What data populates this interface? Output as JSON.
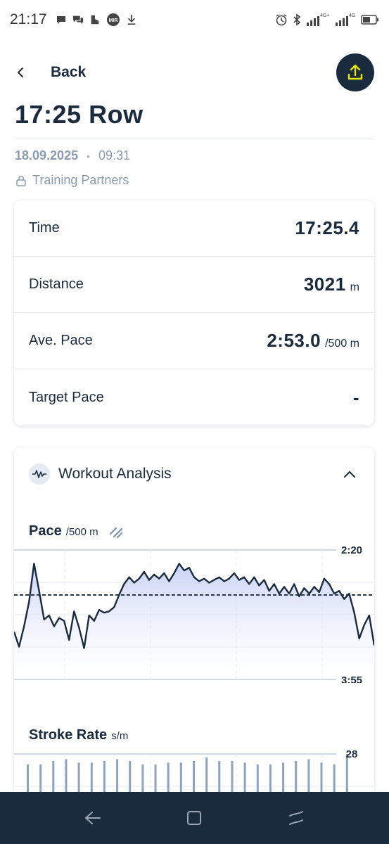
{
  "status_bar": {
    "time": "21:17",
    "left_icons": [
      "chat-bubble-icon",
      "chat-bubbles-icon",
      "shoe-icon",
      "mir-icon",
      "download-icon"
    ],
    "mir_label": "MIR",
    "right_icons": [
      "alarm-icon",
      "bluetooth-icon",
      "signal-4g-plus-icon",
      "signal-4g-icon",
      "battery-icon"
    ],
    "net1": "4G+",
    "net2": "4G"
  },
  "header": {
    "back_label": "Back",
    "export_icon": "upload-icon"
  },
  "workout": {
    "title": "17:25 Row",
    "date": "18.09.2025",
    "separator": "•",
    "time": "09:31",
    "privacy": "Training Partners"
  },
  "summary": {
    "rows": [
      {
        "label": "Time",
        "value": "17:25.4",
        "unit": ""
      },
      {
        "label": "Distance",
        "value": "3021",
        "unit": "m"
      },
      {
        "label": "Ave. Pace",
        "value": "2:53.0",
        "unit": "/500 m"
      },
      {
        "label": "Target Pace",
        "value": "-",
        "unit": ""
      }
    ]
  },
  "analysis": {
    "title": "Workout Analysis",
    "pace_chart": {
      "title": "Pace",
      "unit": "/500 m",
      "tick_top": "2:20",
      "tick_bottom": "3:55"
    },
    "stroke_chart": {
      "title": "Stroke Rate",
      "unit": "s/m",
      "tick_top": "28"
    }
  },
  "colors": {
    "navy": "#1b2b3e",
    "accent_yellow": "#e5e600",
    "fill_blue": "#c5cff5",
    "grid": "#c2cad4"
  },
  "chart_data": [
    {
      "type": "area",
      "title": "Pace",
      "ylabel": "/500 m",
      "y_ticks": [
        "2:20",
        "3:55"
      ],
      "ylim_seconds": [
        140,
        235
      ],
      "y_inverted": true,
      "reference_line_seconds": 173,
      "grid": true,
      "series": [
        {
          "values_seconds": [
            200,
            211,
            196,
            178,
            150,
            170,
            191,
            188,
            196,
            190,
            192,
            206,
            185,
            197,
            212,
            188,
            192,
            184,
            186,
            185,
            182,
            173,
            165,
            160,
            164,
            161,
            156,
            162,
            158,
            161,
            157,
            163,
            157,
            150,
            155,
            153,
            160,
            163,
            161,
            164,
            162,
            160,
            163,
            161,
            157,
            162,
            160,
            165,
            160,
            166,
            162,
            170,
            165,
            172,
            167,
            172,
            165,
            174,
            168,
            172,
            167,
            171,
            161,
            165,
            172,
            170,
            176,
            172,
            186,
            205,
            195,
            188,
            210
          ]
        }
      ]
    },
    {
      "type": "bar",
      "title": "Stroke Rate",
      "ylabel": "s/m",
      "y_ticks": [
        "28"
      ],
      "ylim": [
        0,
        28
      ],
      "grid": true,
      "series": [
        {
          "values": [
            22,
            22,
            24,
            25,
            23,
            23,
            24,
            25,
            24,
            22,
            22,
            23,
            23,
            24,
            26,
            24,
            24,
            23,
            22,
            22,
            23,
            24,
            25,
            23,
            22,
            28
          ]
        }
      ]
    }
  ]
}
